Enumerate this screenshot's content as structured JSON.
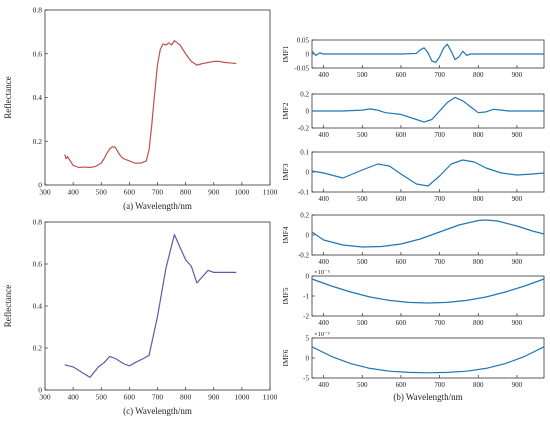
{
  "chart_data": [
    {
      "id": "a",
      "type": "line",
      "caption": "(a) Wavelength/nm",
      "ylabel": "Reflectance",
      "xlim": [
        300,
        1100
      ],
      "ylim": [
        0,
        0.8
      ],
      "xticks": [
        300,
        400,
        500,
        600,
        700,
        800,
        900,
        1000,
        1100
      ],
      "yticks": [
        0,
        0.2,
        0.4,
        0.6,
        0.8
      ],
      "color": "#c0504d",
      "x": [
        370,
        375,
        380,
        390,
        400,
        420,
        440,
        460,
        480,
        500,
        510,
        520,
        530,
        540,
        550,
        560,
        570,
        580,
        600,
        620,
        640,
        660,
        670,
        680,
        690,
        700,
        710,
        720,
        730,
        740,
        750,
        760,
        770,
        780,
        790,
        800,
        820,
        840,
        860,
        880,
        900,
        920,
        940,
        960,
        980
      ],
      "y": [
        0.14,
        0.12,
        0.13,
        0.11,
        0.09,
        0.08,
        0.082,
        0.08,
        0.085,
        0.1,
        0.12,
        0.145,
        0.165,
        0.175,
        0.172,
        0.15,
        0.13,
        0.12,
        0.11,
        0.1,
        0.1,
        0.11,
        0.16,
        0.28,
        0.42,
        0.55,
        0.62,
        0.645,
        0.64,
        0.65,
        0.64,
        0.66,
        0.65,
        0.64,
        0.62,
        0.6,
        0.565,
        0.548,
        0.555,
        0.56,
        0.565,
        0.565,
        0.56,
        0.558,
        0.555
      ]
    },
    {
      "id": "c",
      "type": "line",
      "caption": "(c) Wavelength/nm",
      "ylabel": "Reflectance",
      "xlim": [
        300,
        1100
      ],
      "ylim": [
        0,
        0.8
      ],
      "xticks": [
        300,
        400,
        500,
        600,
        700,
        800,
        900,
        1000,
        1100
      ],
      "yticks": [
        0,
        0.2,
        0.4,
        0.6,
        0.8
      ],
      "color": "#5b5ba8",
      "x": [
        370,
        400,
        430,
        460,
        490,
        510,
        530,
        550,
        580,
        600,
        620,
        650,
        670,
        700,
        730,
        760,
        780,
        800,
        820,
        840,
        860,
        880,
        900,
        940,
        980
      ],
      "y": [
        0.12,
        0.11,
        0.085,
        0.06,
        0.11,
        0.13,
        0.16,
        0.15,
        0.125,
        0.115,
        0.13,
        0.15,
        0.165,
        0.35,
        0.58,
        0.74,
        0.68,
        0.62,
        0.59,
        0.51,
        0.54,
        0.57,
        0.56,
        0.56,
        0.56
      ]
    },
    {
      "id": "imf1",
      "type": "line",
      "ylabel": "IMF1",
      "xlim": [
        370,
        970
      ],
      "ylim": [
        -0.05,
        0.05
      ],
      "xticks": [
        400,
        500,
        600,
        700,
        800,
        900
      ],
      "yticks": [
        -0.05,
        0,
        0.05
      ],
      "color": "#1f77b4",
      "x": [
        370,
        380,
        390,
        400,
        500,
        600,
        640,
        650,
        660,
        670,
        680,
        690,
        700,
        710,
        720,
        730,
        740,
        750,
        760,
        770,
        780,
        800,
        900,
        970
      ],
      "y": [
        0.01,
        -0.005,
        0.004,
        0,
        0,
        0,
        0.002,
        0.015,
        0.022,
        0.005,
        -0.025,
        -0.03,
        -0.01,
        0.02,
        0.035,
        0.01,
        -0.02,
        -0.01,
        0.01,
        -0.005,
        0,
        0,
        0,
        0
      ]
    },
    {
      "id": "imf2",
      "type": "line",
      "ylabel": "IMF2",
      "xlim": [
        370,
        970
      ],
      "ylim": [
        -0.2,
        0.2
      ],
      "xticks": [
        400,
        500,
        600,
        700,
        800,
        900
      ],
      "yticks": [
        -0.2,
        0,
        0.2
      ],
      "color": "#1f77b4",
      "x": [
        370,
        400,
        450,
        500,
        520,
        540,
        560,
        600,
        640,
        660,
        680,
        700,
        720,
        740,
        760,
        780,
        800,
        820,
        840,
        860,
        880,
        900,
        970
      ],
      "y": [
        0,
        0,
        0,
        0.01,
        0.025,
        0.01,
        -0.02,
        -0.04,
        -0.1,
        -0.13,
        -0.1,
        0,
        0.1,
        0.16,
        0.12,
        0.05,
        -0.02,
        -0.01,
        0.02,
        0.01,
        0,
        0,
        0
      ]
    },
    {
      "id": "imf3",
      "type": "line",
      "ylabel": "IMF3",
      "xlim": [
        370,
        970
      ],
      "ylim": [
        -0.1,
        0.1
      ],
      "xticks": [
        400,
        500,
        600,
        700,
        800,
        900
      ],
      "yticks": [
        -0.1,
        0,
        0.1
      ],
      "color": "#1f77b4",
      "x": [
        370,
        400,
        450,
        500,
        540,
        570,
        600,
        640,
        670,
        700,
        730,
        760,
        790,
        820,
        860,
        900,
        940,
        970
      ],
      "y": [
        0.005,
        -0.005,
        -0.03,
        0.01,
        0.04,
        0.03,
        -0.01,
        -0.06,
        -0.07,
        -0.02,
        0.04,
        0.06,
        0.05,
        0.02,
        -0.005,
        -0.015,
        -0.01,
        -0.005
      ]
    },
    {
      "id": "imf4",
      "type": "line",
      "ylabel": "IMF4",
      "xlim": [
        370,
        970
      ],
      "ylim": [
        -0.2,
        0.2
      ],
      "xticks": [
        400,
        500,
        600,
        700,
        800,
        900
      ],
      "yticks": [
        -0.2,
        0,
        0.2
      ],
      "color": "#1f77b4",
      "x": [
        370,
        400,
        450,
        500,
        550,
        600,
        650,
        700,
        750,
        800,
        820,
        850,
        900,
        940,
        970
      ],
      "y": [
        0.03,
        -0.05,
        -0.1,
        -0.12,
        -0.115,
        -0.09,
        -0.04,
        0.03,
        0.1,
        0.145,
        0.15,
        0.14,
        0.09,
        0.04,
        0.01
      ]
    },
    {
      "id": "imf5",
      "type": "line",
      "ylabel": "IMF5",
      "yscale_label": "×10⁻⁵",
      "xlim": [
        370,
        970
      ],
      "ylim": [
        -2,
        0
      ],
      "xticks": [
        400,
        500,
        600,
        700,
        800,
        900
      ],
      "yticks": [
        -2,
        -1,
        0
      ],
      "color": "#1f77b4",
      "x": [
        370,
        420,
        470,
        520,
        570,
        620,
        670,
        720,
        770,
        820,
        870,
        920,
        970
      ],
      "y": [
        -0.15,
        -0.5,
        -0.8,
        -1.05,
        -1.22,
        -1.32,
        -1.35,
        -1.32,
        -1.22,
        -1.05,
        -0.8,
        -0.5,
        -0.15
      ]
    },
    {
      "id": "imf6",
      "type": "line",
      "ylabel": "IMF6",
      "yscale_label": "×10⁻³",
      "caption": "(b) Wavelength/nm",
      "xlim": [
        370,
        970
      ],
      "ylim": [
        -5,
        5
      ],
      "xticks": [
        400,
        500,
        600,
        700,
        800,
        900
      ],
      "yticks": [
        -5,
        0,
        5
      ],
      "color": "#1f77b4",
      "x": [
        370,
        420,
        470,
        520,
        570,
        620,
        670,
        720,
        770,
        820,
        870,
        920,
        970
      ],
      "y": [
        2.8,
        0.4,
        -1.4,
        -2.6,
        -3.3,
        -3.6,
        -3.7,
        -3.6,
        -3.3,
        -2.6,
        -1.4,
        0.4,
        2.8
      ]
    }
  ]
}
